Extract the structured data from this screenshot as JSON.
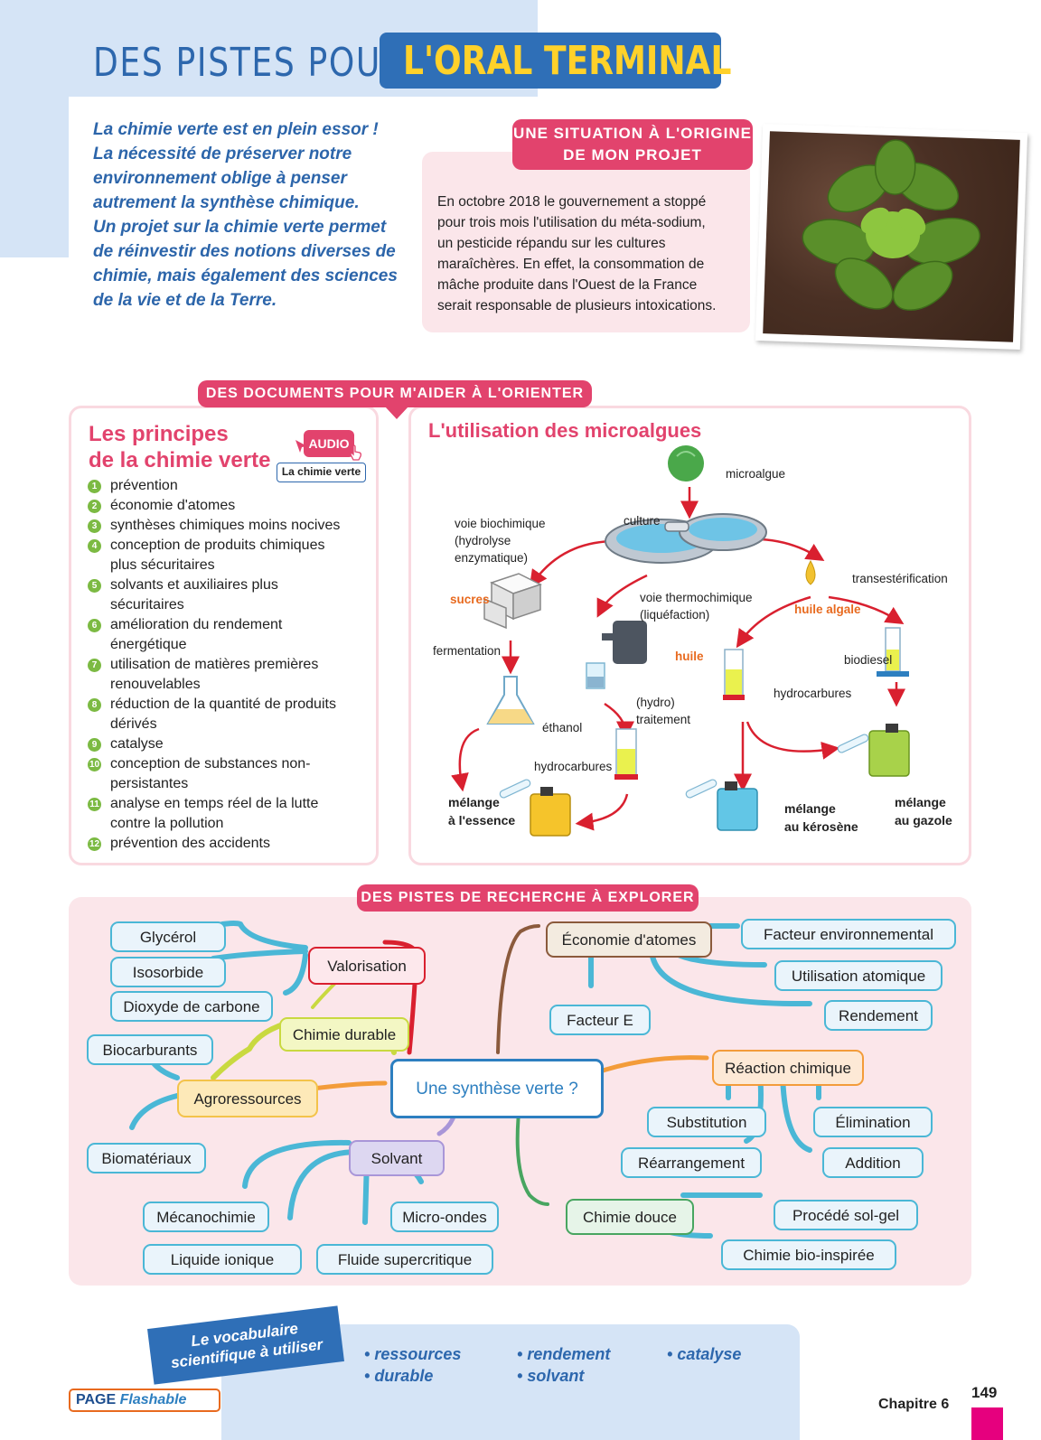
{
  "title": {
    "left": "DES PISTES POUR",
    "right": "L'ORAL TERMINAL"
  },
  "intro": [
    "La chimie verte est en plein essor !",
    "La nécessité de préserver notre",
    "environnement oblige à penser",
    "autrement la synthèse chimique.",
    "Un projet sur la chimie verte permet",
    "de réinvestir des notions diverses de",
    "chimie, mais également des sciences",
    "de la vie et de la Terre."
  ],
  "situation": {
    "tag_line1": "UNE SITUATION À L'ORIGINE",
    "tag_line2": "DE MON PROJET",
    "text": [
      "En octobre 2018 le gouvernement a stoppé",
      "pour trois mois l'utilisation du méta-sodium,",
      "un pesticide répandu sur les cultures",
      "maraîchères. En effet, la consommation de",
      "mâche produite dans l'Ouest de la France",
      "serait responsable de plusieurs intoxications."
    ]
  },
  "documents": {
    "tag": "DES DOCUMENTS POUR M'AIDER À L'ORIENTER",
    "principles": {
      "title_line1": "Les principes",
      "title_line2": "de la chimie verte",
      "audio_badge": "AUDIO",
      "audio_label": "La chimie verte",
      "items": [
        {
          "num": "1",
          "lines": [
            "prévention"
          ]
        },
        {
          "num": "2",
          "lines": [
            "économie d'atomes"
          ]
        },
        {
          "num": "3",
          "lines": [
            "synthèses chimiques moins nocives"
          ]
        },
        {
          "num": "4",
          "lines": [
            "conception de produits chimiques",
            "plus sécuritaires"
          ]
        },
        {
          "num": "5",
          "lines": [
            "solvants et auxiliaires plus",
            "sécuritaires"
          ]
        },
        {
          "num": "6",
          "lines": [
            "amélioration du rendement",
            "énergétique"
          ]
        },
        {
          "num": "7",
          "lines": [
            "utilisation de matières premières",
            "renouvelables"
          ]
        },
        {
          "num": "8",
          "lines": [
            "réduction de la quantité de produits",
            "dérivés"
          ]
        },
        {
          "num": "9",
          "lines": [
            "catalyse"
          ]
        },
        {
          "num": "10",
          "lines": [
            "conception de substances non-",
            "persistantes"
          ]
        },
        {
          "num": "11",
          "lines": [
            "analyse en temps réel de la lutte",
            "contre la pollution"
          ]
        },
        {
          "num": "12",
          "lines": [
            "prévention des accidents"
          ]
        }
      ]
    },
    "algae": {
      "title": "L'utilisation des microalgues",
      "microalgue": "microalgue",
      "culture": "culture",
      "voie_bio_1": "voie biochimique",
      "voie_bio_2": "(hydrolyse",
      "voie_bio_3": "enzymatique)",
      "voie_thermo_1": "voie thermochimique",
      "voie_thermo_2": "(liquéfaction)",
      "transesterification": "transestérification",
      "sucres": "sucres",
      "huile_algale": "huile algale",
      "fermentation": "fermentation",
      "huile": "huile",
      "biodiesel": "biodiesel",
      "hydrocarbures_right": "hydrocarbures",
      "hydro_1": "(hydro)",
      "hydro_2": "traitement",
      "ethanol": "éthanol",
      "hydrocarbures_mid": "hydrocarbures",
      "melange_essence_1": "mélange",
      "melange_essence_2": "à l'essence",
      "melange_kerosene_1": "mélange",
      "melange_kerosene_2": "au kérosène",
      "melange_gazole_1": "mélange",
      "melange_gazole_2": "au gazole"
    }
  },
  "research": {
    "tag": "DES PISTES DE RECHERCHE À EXPLORER",
    "center": "Une synthèse verte ?",
    "valorisation": "Valorisation",
    "glycerol": "Glycérol",
    "isosorbide": "Isosorbide",
    "dioxyde": "Dioxyde de carbone",
    "chimie_durable": "Chimie durable",
    "biocarburants": "Biocarburants",
    "agroressources": "Agroressources",
    "biomateriaux": "Biomatériaux",
    "solvant": "Solvant",
    "mecanochimie": "Mécanochimie",
    "micro_ondes": "Micro-ondes",
    "liquide_ionique": "Liquide ionique",
    "fluide_supercritique": "Fluide supercritique",
    "economie_atomes": "Économie d'atomes",
    "facteur_env": "Facteur environnemental",
    "utilisation_atomique": "Utilisation atomique",
    "facteur_e": "Facteur E",
    "rendement": "Rendement",
    "reaction_chimique": "Réaction chimique",
    "substitution": "Substitution",
    "elimination": "Élimination",
    "rearrangement": "Réarrangement",
    "addition": "Addition",
    "chimie_douce": "Chimie douce",
    "sol_gel": "Procédé sol-gel",
    "bio_inspiree": "Chimie bio-inspirée"
  },
  "vocab": {
    "ribbon_line1": "Le vocabulaire",
    "ribbon_line2": "scientifique à utiliser",
    "col1": [
      "ressources",
      "durable"
    ],
    "col2": [
      "rendement",
      "solvant"
    ],
    "col3": [
      "catalyse"
    ]
  },
  "footer": {
    "page_label": "PAGE",
    "flashable_label": "Flashable",
    "chapter": "Chapitre 6",
    "page_number": "149"
  },
  "colors": {
    "pink": "#e2436d",
    "blue": "#2f6fb7",
    "yellow": "#ffd12a",
    "teal": "#4ab7d6"
  }
}
